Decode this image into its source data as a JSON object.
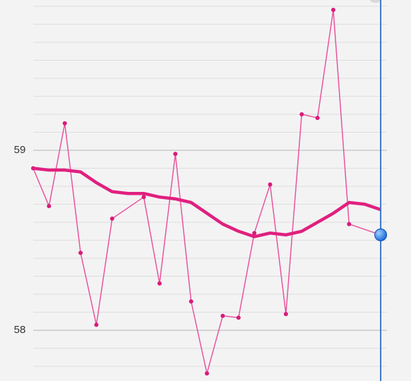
{
  "chart_data": {
    "type": "line",
    "xlim": [
      0,
      22.4
    ],
    "ylim": [
      57.718,
      59.835
    ],
    "yticks": [
      58,
      59
    ],
    "yminor": [
      57.8,
      57.9,
      58.1,
      58.2,
      58.3,
      58.4,
      58.5,
      58.6,
      58.7,
      58.8,
      58.9,
      59.1,
      59.2,
      59.3,
      59.4,
      59.5,
      59.6,
      59.7,
      59.8
    ],
    "grid": true,
    "cursor_x": 22,
    "series": [
      {
        "color": "#e8559f",
        "width": 1.5,
        "markers": true,
        "x": [
          0,
          1,
          2,
          3,
          4,
          5,
          7,
          8,
          9,
          10,
          11,
          12,
          13,
          14,
          15,
          16,
          17,
          18,
          19,
          20,
          22
        ],
        "values": [
          58.9,
          58.69,
          59.15,
          58.43,
          58.03,
          58.62,
          58.74,
          58.26,
          58.98,
          58.16,
          57.76,
          58.08,
          58.07,
          58.54,
          58.81,
          58.09,
          59.2,
          59.18,
          59.78,
          58.59,
          58.53
        ]
      },
      {
        "color": "#e0207f",
        "width": 4.5,
        "markers": false,
        "x": [
          0,
          1,
          2,
          3,
          4,
          5,
          6,
          7,
          8,
          9,
          10,
          11,
          12,
          13,
          14,
          15,
          16,
          17,
          18,
          19,
          20,
          21,
          22
        ],
        "values": [
          58.9,
          58.89,
          58.89,
          58.88,
          58.82,
          58.77,
          58.76,
          58.76,
          58.74,
          58.73,
          58.71,
          58.65,
          58.59,
          58.55,
          58.52,
          58.54,
          58.53,
          58.55,
          58.6,
          58.65,
          58.71,
          58.7,
          58.67
        ]
      }
    ]
  }
}
